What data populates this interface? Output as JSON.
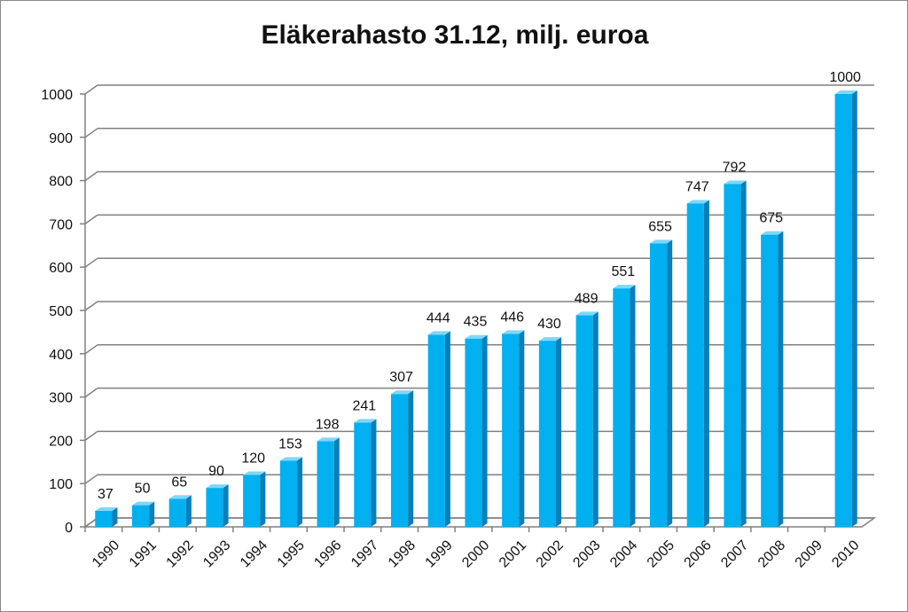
{
  "chart_data": {
    "type": "bar",
    "title": "Eläkerahasto 31.12, milj. euroa",
    "xlabel": "",
    "ylabel": "",
    "ylim": [
      0,
      1000
    ],
    "yticks": [
      0,
      100,
      200,
      300,
      400,
      500,
      600,
      700,
      800,
      900,
      1000
    ],
    "grid": true,
    "categories": [
      "1990",
      "1991",
      "1992",
      "1993",
      "1994",
      "1995",
      "1996",
      "1997",
      "1998",
      "1999",
      "2000",
      "2001",
      "2002",
      "2003",
      "2004",
      "2005",
      "2006",
      "2007",
      "2008",
      "2009",
      "2010"
    ],
    "values": [
      37,
      50,
      65,
      90,
      120,
      153,
      198,
      241,
      307,
      444,
      435,
      446,
      430,
      489,
      551,
      655,
      747,
      792,
      675,
      null,
      1000
    ],
    "data_labels": [
      "37",
      "50",
      "65",
      "90",
      "120",
      "153",
      "198",
      "241",
      "307",
      "444",
      "435",
      "446",
      "430",
      "489",
      "551",
      "655",
      "747",
      "792",
      "675",
      "",
      "1000"
    ],
    "colors": {
      "bar_front": "#00B0F0",
      "bar_side": "#0A7FB8",
      "bar_top": "#7FD7F7",
      "grid": "#808080"
    }
  }
}
